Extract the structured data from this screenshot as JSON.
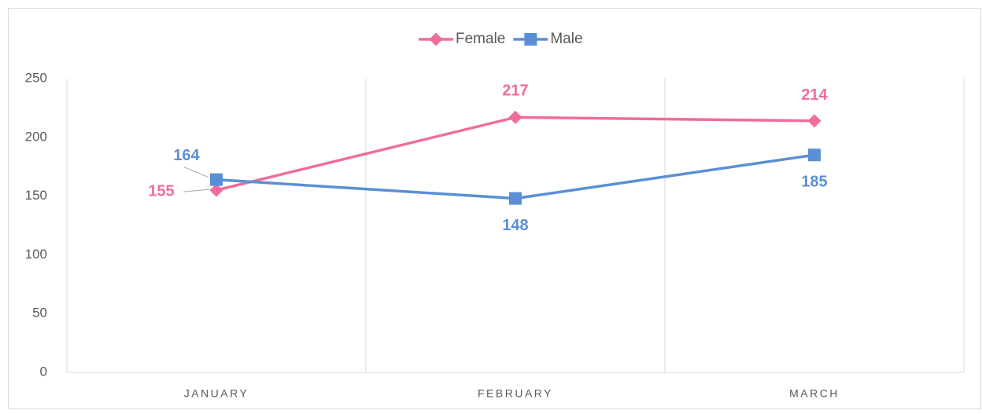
{
  "chart_data": {
    "type": "line",
    "categories": [
      "JANUARY",
      "FEBRUARY",
      "MARCH"
    ],
    "series": [
      {
        "name": "Female",
        "color": "#f06c9b",
        "values": [
          155,
          217,
          214
        ]
      },
      {
        "name": "Male",
        "color": "#5b8fd5",
        "values": [
          164,
          148,
          185
        ]
      }
    ],
    "ylim": [
      0,
      250
    ],
    "yticks": [
      0,
      50,
      100,
      150,
      200,
      250
    ],
    "legend": "top",
    "grid": true
  }
}
